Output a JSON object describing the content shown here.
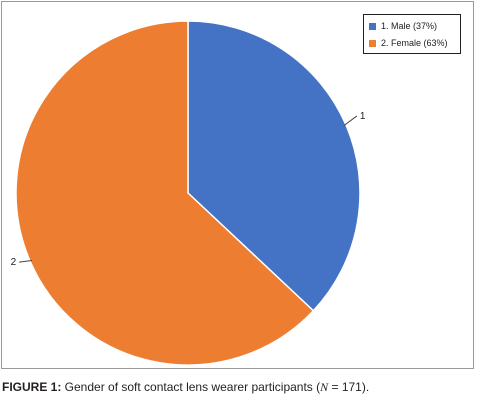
{
  "colors": {
    "male": "#4472c4",
    "female": "#ed7d31"
  },
  "chart_data": {
    "type": "pie",
    "title": "",
    "categories": [
      "1. Male (37%)",
      "2. Female (63%)"
    ],
    "values": [
      37,
      63
    ],
    "slice_labels": [
      "1",
      "2"
    ],
    "legend_position": "top-right"
  },
  "caption": {
    "label": "FIGURE 1:",
    "text_before": " Gender of soft contact lens wearer participants (",
    "n_var": "N",
    "text_after": " = 171)."
  }
}
